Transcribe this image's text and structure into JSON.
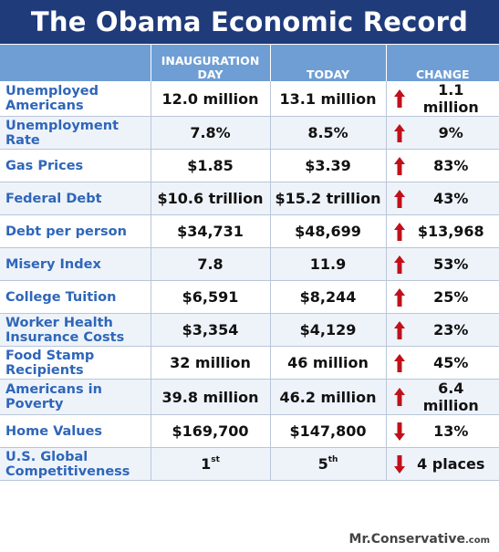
{
  "title": "The Obama Economic Record",
  "footer": {
    "site": "Mr.Conservative",
    "tld": ".com"
  },
  "colors": {
    "header_bg": "#1f3b7a",
    "column_header_bg": "#6f9ed4",
    "label": "#2f66b8",
    "arrow": "#c0111a"
  },
  "chart_data": {
    "type": "table",
    "title": "The Obama Economic Record",
    "columns": [
      "",
      "INAUGURATION DAY",
      "TODAY",
      "CHANGE"
    ],
    "rows": [
      {
        "metric": "Unemployed Americans",
        "inauguration": "12.0 million",
        "today": "13.1 million",
        "change": "1.1 million",
        "direction": "up"
      },
      {
        "metric": "Unemployment Rate",
        "inauguration": "7.8%",
        "today": "8.5%",
        "change": "9%",
        "direction": "up"
      },
      {
        "metric": "Gas Prices",
        "inauguration": "$1.85",
        "today": "$3.39",
        "change": "83%",
        "direction": "up"
      },
      {
        "metric": "Federal Debt",
        "inauguration": "$10.6 trillion",
        "today": "$15.2 trillion",
        "change": "43%",
        "direction": "up"
      },
      {
        "metric": "Debt per person",
        "inauguration": "$34,731",
        "today": "$48,699",
        "change": "$13,968",
        "direction": "up"
      },
      {
        "metric": "Misery Index",
        "inauguration": "7.8",
        "today": "11.9",
        "change": "53%",
        "direction": "up"
      },
      {
        "metric": "College Tuition",
        "inauguration": "$6,591",
        "today": "$8,244",
        "change": "25%",
        "direction": "up"
      },
      {
        "metric": "Worker Health Insurance Costs",
        "inauguration": "$3,354",
        "today": "$4,129",
        "change": "23%",
        "direction": "up"
      },
      {
        "metric": "Food Stamp Recipients",
        "inauguration": "32 million",
        "today": "46 million",
        "change": "45%",
        "direction": "up"
      },
      {
        "metric": "Americans in Poverty",
        "inauguration": "39.8 million",
        "today": "46.2 million",
        "change": "6.4 million",
        "direction": "up"
      },
      {
        "metric": "Home Values",
        "inauguration": "$169,700",
        "today": "$147,800",
        "change": "13%",
        "direction": "down"
      },
      {
        "metric": "U.S. Global Competitiveness",
        "inauguration": "1",
        "inauguration_sup": "st",
        "today": "5",
        "today_sup": "th",
        "change": "4 places",
        "direction": "down"
      }
    ]
  }
}
